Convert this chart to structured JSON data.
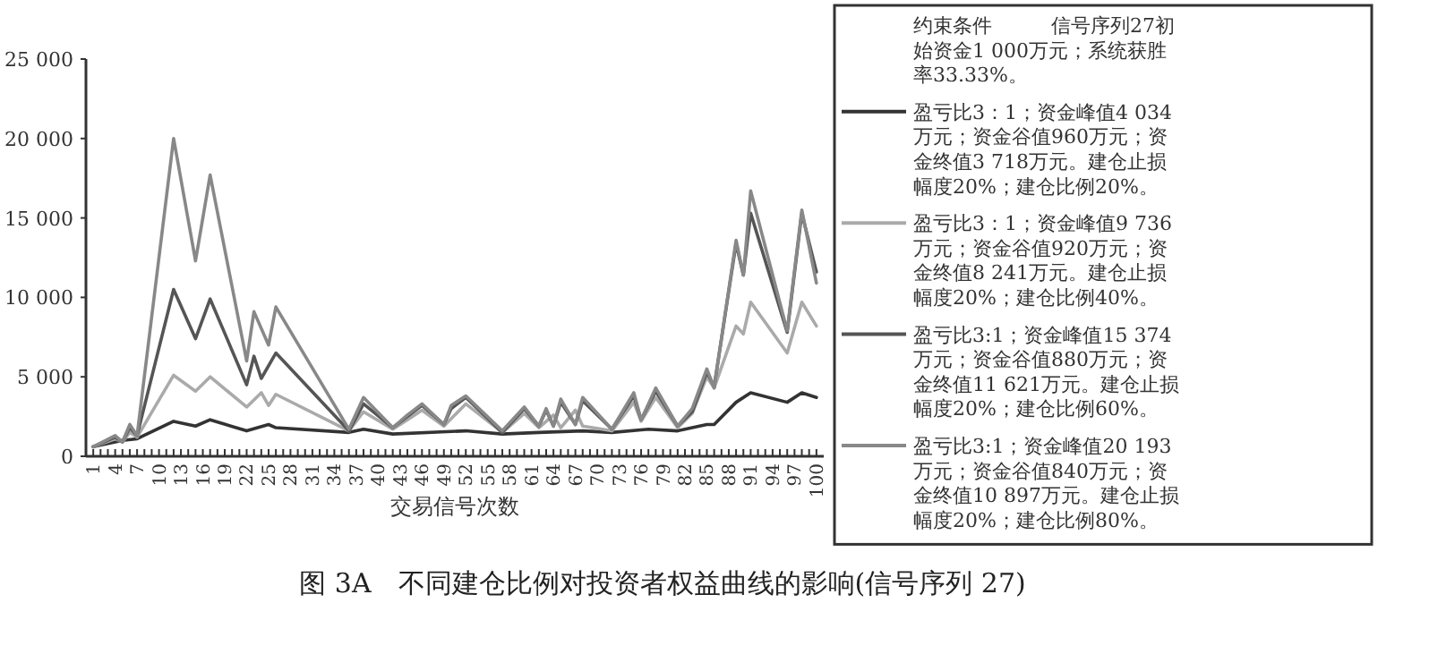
{
  "chart_data": {
    "type": "line",
    "title": "图 3A　不同建仓比例对投资者权益曲线的影响(信号序列 27)",
    "xlabel": "交易信号次数",
    "legend_title": "约束条件　　　信号序列27初始资金1 000万元；系统获胜率33.33%。",
    "legend": "right",
    "grid": false,
    "xlim": [
      0,
      101
    ],
    "xticks": [
      1,
      {
        "value": 2,
        "label": null
      },
      {
        "value": 3,
        "label": null
      },
      4,
      {
        "value": 5,
        "label": null
      },
      {
        "value": 6,
        "label": null
      },
      7,
      {
        "value": 8,
        "label": null
      },
      {
        "value": 9,
        "label": null
      },
      10,
      {
        "value": 11,
        "label": null
      },
      {
        "value": 12,
        "label": null
      },
      13,
      {
        "value": 14,
        "label": null
      },
      {
        "value": 15,
        "label": null
      },
      16,
      {
        "value": 17,
        "label": null
      },
      {
        "value": 18,
        "label": null
      },
      19,
      {
        "value": 20,
        "label": null
      },
      {
        "value": 21,
        "label": null
      },
      22,
      {
        "value": 23,
        "label": null
      },
      {
        "value": 24,
        "label": null
      },
      25,
      {
        "value": 26,
        "label": null
      },
      {
        "value": 27,
        "label": null
      },
      28,
      {
        "value": 29,
        "label": null
      },
      {
        "value": 30,
        "label": null
      },
      31,
      {
        "value": 32,
        "label": null
      },
      {
        "value": 33,
        "label": null
      },
      34,
      {
        "value": 35,
        "label": null
      },
      {
        "value": 36,
        "label": null
      },
      37,
      {
        "value": 38,
        "label": null
      },
      {
        "value": 39,
        "label": null
      },
      40,
      {
        "value": 41,
        "label": null
      },
      {
        "value": 42,
        "label": null
      },
      43,
      {
        "value": 44,
        "label": null
      },
      {
        "value": 45,
        "label": null
      },
      46,
      {
        "value": 47,
        "label": null
      },
      {
        "value": 48,
        "label": null
      },
      49,
      {
        "value": 50,
        "label": null
      },
      {
        "value": 51,
        "label": null
      },
      52,
      {
        "value": 53,
        "label": null
      },
      {
        "value": 54,
        "label": null
      },
      55,
      {
        "value": 56,
        "label": null
      },
      {
        "value": 57,
        "label": null
      },
      58,
      {
        "value": 59,
        "label": null
      },
      {
        "value": 60,
        "label": null
      },
      61,
      {
        "value": 62,
        "label": null
      },
      {
        "value": 63,
        "label": null
      },
      64,
      {
        "value": 65,
        "label": null
      },
      {
        "value": 66,
        "label": null
      },
      67,
      {
        "value": 68,
        "label": null
      },
      {
        "value": 69,
        "label": null
      },
      70,
      {
        "value": 71,
        "label": null
      },
      {
        "value": 72,
        "label": null
      },
      73,
      {
        "value": 74,
        "label": null
      },
      {
        "value": 75,
        "label": null
      },
      76,
      {
        "value": 77,
        "label": null
      },
      {
        "value": 78,
        "label": null
      },
      79,
      {
        "value": 80,
        "label": null
      },
      {
        "value": 81,
        "label": null
      },
      82,
      {
        "value": 83,
        "label": null
      },
      {
        "value": 84,
        "label": null
      },
      85,
      {
        "value": 86,
        "label": null
      },
      {
        "value": 87,
        "label": null
      },
      88,
      {
        "value": 89,
        "label": null
      },
      {
        "value": 90,
        "label": null
      },
      91,
      {
        "value": 92,
        "label": null
      },
      {
        "value": 93,
        "label": null
      },
      94,
      {
        "value": 95,
        "label": null
      },
      {
        "value": 96,
        "label": null
      },
      97,
      {
        "value": 98,
        "label": null
      },
      {
        "value": 99,
        "label": null
      },
      100
    ],
    "ylim": [
      0,
      25000
    ],
    "yticks": [
      0,
      {
        "value": 5000,
        "label": "5 000"
      },
      {
        "value": 10000,
        "label": "10 000"
      },
      {
        "value": 15000,
        "label": "15 000"
      },
      {
        "value": 20000,
        "label": "20 000"
      },
      {
        "value": 25000,
        "label": "25 000"
      }
    ],
    "series": [
      {
        "name": "盈亏比3：1；资金峰值4 034万元；资金谷值960万元；资金终值3 718万元。建仓止损幅度20%；建仓比例20%。",
        "color": "#333333",
        "x": [
          1,
          4,
          5,
          7,
          12,
          15,
          17,
          22,
          25,
          26,
          36,
          38,
          42,
          52,
          57,
          62,
          68,
          72,
          77,
          81,
          82,
          85,
          86,
          89,
          91,
          96,
          98,
          100
        ],
        "values": [
          600,
          900,
          1000,
          1100,
          2200,
          1900,
          2300,
          1600,
          2000,
          1800,
          1500,
          1700,
          1400,
          1600,
          1400,
          1500,
          1600,
          1500,
          1700,
          1600,
          1700,
          2000,
          2000,
          3400,
          4000,
          3400,
          4000,
          3700
        ]
      },
      {
        "name": "盈亏比3：1；资金峰值9 736万元；资金谷值920万元；资金终值8 241万元。建仓止损幅度20%；建仓比例40%。",
        "color": "#aaaaaa",
        "x": [
          1,
          4,
          5,
          6,
          7,
          12,
          15,
          17,
          22,
          24,
          25,
          26,
          36,
          38,
          42,
          44,
          46,
          49,
          52,
          57,
          60,
          62,
          64,
          65,
          67,
          68,
          72,
          75,
          76,
          78,
          81,
          83,
          85,
          86,
          89,
          90,
          91,
          96,
          98,
          100
        ],
        "values": [
          600,
          1100,
          900,
          1500,
          1200,
          5100,
          4100,
          5000,
          3100,
          4000,
          3200,
          3900,
          1600,
          2800,
          1700,
          2300,
          2900,
          1900,
          3300,
          1500,
          2700,
          1800,
          2600,
          1800,
          2900,
          1900,
          1600,
          3400,
          2200,
          3700,
          1800,
          2700,
          5000,
          4300,
          8200,
          7700,
          9700,
          6500,
          9700,
          8200
        ]
      },
      {
        "name": "盈亏比3:1；资金峰值15 374万元；资金谷值880万元；资金终值11 621万元。建仓止损幅度20%；建仓比例60%。",
        "color": "#555555",
        "x": [
          1,
          4,
          5,
          6,
          7,
          12,
          15,
          17,
          22,
          23,
          24,
          26,
          36,
          38,
          42,
          44,
          46,
          49,
          50,
          52,
          57,
          60,
          62,
          63,
          64,
          65,
          67,
          68,
          72,
          75,
          76,
          78,
          81,
          83,
          85,
          86,
          89,
          90,
          91,
          96,
          98,
          100
        ],
        "values": [
          600,
          1200,
          900,
          1800,
          1300,
          10500,
          7400,
          9900,
          4500,
          6300,
          4900,
          6500,
          1600,
          3300,
          1800,
          2500,
          3200,
          2000,
          3000,
          3700,
          1500,
          3000,
          1900,
          2900,
          1900,
          3400,
          2000,
          3500,
          1700,
          3800,
          2300,
          4100,
          1900,
          2800,
          5300,
          4400,
          13400,
          11400,
          15300,
          7800,
          15300,
          11600
        ]
      },
      {
        "name": "盈亏比3:1；资金峰值20 193万元；资金谷值840万元；资金终值10 897万元。建仓止损幅度20%；建仓比例80%。",
        "color": "#888888",
        "x": [
          1,
          4,
          5,
          6,
          7,
          12,
          15,
          17,
          22,
          23,
          25,
          26,
          36,
          38,
          42,
          44,
          46,
          49,
          50,
          52,
          57,
          60,
          62,
          63,
          64,
          65,
          67,
          68,
          72,
          75,
          76,
          78,
          81,
          83,
          85,
          86,
          89,
          90,
          91,
          96,
          98,
          100
        ],
        "values": [
          600,
          1300,
          900,
          2000,
          1300,
          20000,
          12300,
          17700,
          6000,
          9100,
          7000,
          9400,
          1700,
          3700,
          1800,
          2600,
          3300,
          2000,
          3200,
          3800,
          1600,
          3100,
          1900,
          3000,
          1900,
          3600,
          2000,
          3700,
          1700,
          4000,
          2300,
          4300,
          1900,
          3000,
          5500,
          4300,
          13600,
          11400,
          16700,
          7900,
          15500,
          10900
        ]
      }
    ]
  }
}
